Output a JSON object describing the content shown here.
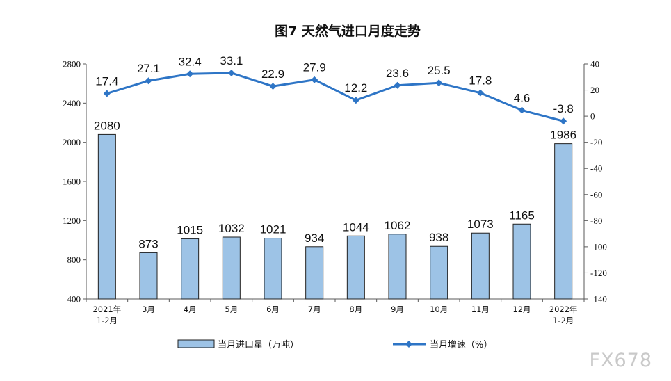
{
  "chart_data": {
    "type": "bar",
    "title": "图7  天然气进口月度走势",
    "categories": [
      "2021年\n1-2月",
      "3月",
      "4月",
      "5月",
      "6月",
      "7月",
      "8月",
      "9月",
      "10月",
      "11月",
      "12月",
      "2022年\n1-2月"
    ],
    "left_axis": {
      "min": 400,
      "max": 2800,
      "ticks": [
        400,
        800,
        1200,
        1600,
        2000,
        2400,
        2800
      ]
    },
    "right_axis": {
      "min": -140,
      "max": 40,
      "ticks": [
        -140,
        -120,
        -100,
        -80,
        -60,
        -40,
        -20,
        0,
        20,
        40
      ]
    },
    "series": [
      {
        "name": "当月进口量（万吨）",
        "type": "bar",
        "axis": "left",
        "color": "#9dc3e6",
        "border": "#1f1f1f",
        "values": [
          2080,
          873,
          1015,
          1032,
          1021,
          934,
          1044,
          1062,
          938,
          1073,
          1165,
          1986
        ]
      },
      {
        "name": "当月增速（%）",
        "type": "line",
        "axis": "right",
        "color": "#2e75c6",
        "values": [
          17.4,
          27.1,
          32.4,
          33.1,
          22.9,
          27.9,
          12.2,
          23.6,
          25.5,
          17.8,
          4.6,
          -3.8
        ]
      }
    ],
    "legend_position": "bottom",
    "grid": false
  },
  "watermark": "FX678"
}
